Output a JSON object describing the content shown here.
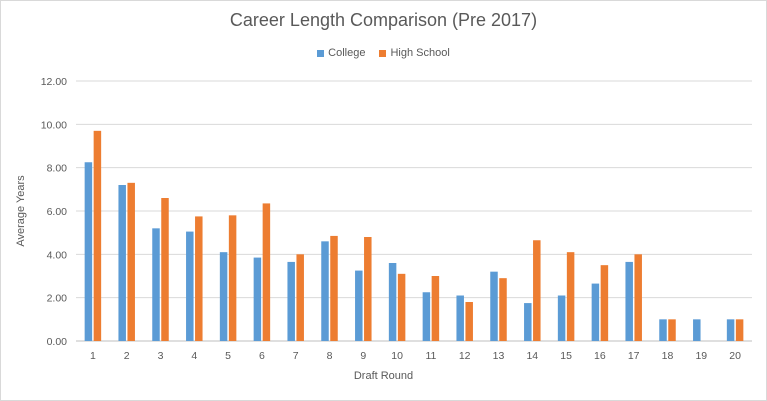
{
  "chart_data": {
    "type": "bar",
    "title": "Career Length Comparison (Pre 2017)",
    "xlabel": "Draft Round",
    "ylabel": "Average Years",
    "categories": [
      "1",
      "2",
      "3",
      "4",
      "5",
      "6",
      "7",
      "8",
      "9",
      "10",
      "11",
      "12",
      "13",
      "14",
      "15",
      "16",
      "17",
      "18",
      "19",
      "20"
    ],
    "series": [
      {
        "name": "College",
        "color": "#5b9bd5",
        "values": [
          8.25,
          7.2,
          5.2,
          5.05,
          4.1,
          3.85,
          3.65,
          4.6,
          3.25,
          3.6,
          2.25,
          2.1,
          3.2,
          1.75,
          2.1,
          2.65,
          3.65,
          1.0,
          1.0,
          1.0
        ]
      },
      {
        "name": "High School",
        "color": "#ed7d31",
        "values": [
          9.7,
          7.3,
          6.6,
          5.75,
          5.8,
          6.35,
          4.0,
          4.85,
          4.8,
          3.1,
          3.0,
          1.8,
          2.9,
          4.65,
          4.1,
          3.5,
          4.0,
          1.0,
          null,
          1.0
        ]
      }
    ],
    "ylim": [
      0,
      12
    ],
    "yticks": [
      "0.00",
      "2.00",
      "4.00",
      "6.00",
      "8.00",
      "10.00",
      "12.00"
    ],
    "grid": true,
    "legend_position": "top"
  }
}
